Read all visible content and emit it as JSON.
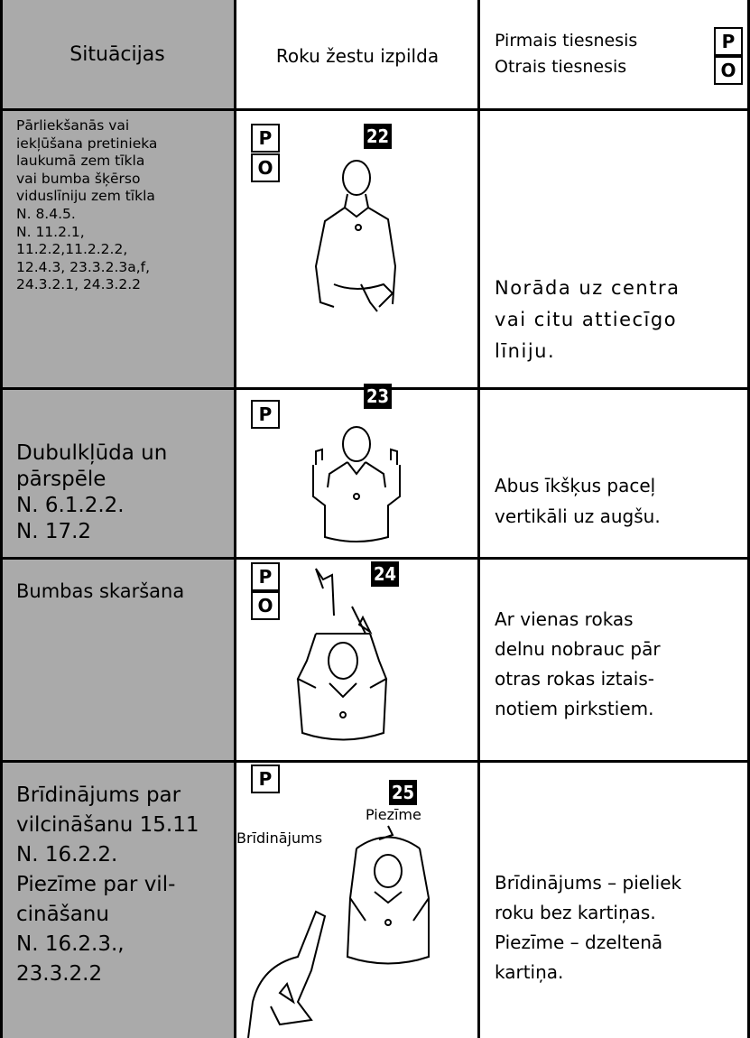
{
  "table": {
    "header": {
      "situations": "Situācijas",
      "gesture": "Roku žestu izpilda",
      "referees": [
        {
          "label": "Pirmais tiesnesis",
          "badge": "P"
        },
        {
          "label": "Otrais tiesnesis",
          "badge": "O"
        }
      ]
    },
    "rows": [
      {
        "situation": [
          "Pārliekšanās vai",
          "iekļūšana pretinieka",
          "laukumā zem tīkla",
          "vai bumba šķērso",
          "viduslīniju zem tīkla",
          "N. 8.4.5.",
          "N. 11.2.1,",
          "11.2.2,11.2.2.2,",
          "12.4.3, 23.3.2.3a,f,",
          "24.3.2.1, 24.3.2.2"
        ],
        "badges": [
          "P",
          "O"
        ],
        "number": "22",
        "description": [
          "Norāda uz centra",
          "vai citu attiecīgo",
          "līniju."
        ]
      },
      {
        "situation": [
          "Dubulkļūda un",
          "pārspēle",
          "N. 6.1.2.2.",
          "N. 17.2"
        ],
        "badges": [
          "P"
        ],
        "number": "23",
        "description": [
          "Abus īkšķus paceļ",
          "vertikāli uz augšu."
        ]
      },
      {
        "situation": [
          "Bumbas skaršana"
        ],
        "badges": [
          "P",
          "O"
        ],
        "number": "24",
        "description": [
          "Ar vienas rokas",
          "delnu nobrauc pār",
          "otras rokas iztais-",
          "notiem pirkstiem."
        ]
      },
      {
        "situation": [
          "Brīdinājums par",
          "vilcināšanu 15.11",
          "N. 16.2.2.",
          "Piezīme par vil-",
          "cināšanu",
          "N. 16.2.3.,",
          "23.3.2.2"
        ],
        "badges": [
          "P"
        ],
        "number": "25",
        "figure_labels": [
          "Piezīme",
          "Brīdinājums"
        ],
        "description": [
          "Brīdinājums – pieliek",
          "roku bez kartiņas.",
          "Piezīme – dzeltenā",
          "kartiņa."
        ]
      }
    ]
  }
}
